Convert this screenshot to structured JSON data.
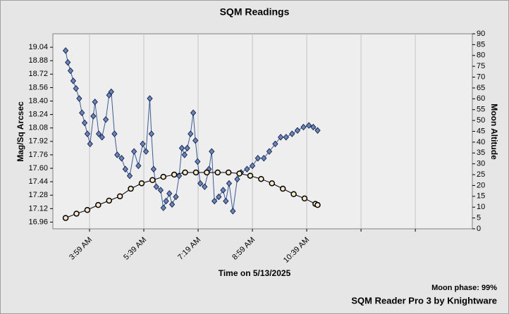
{
  "chart_data": {
    "type": "line",
    "title": "SQM Readings",
    "x_label": "Time on 5/13/2025",
    "y_label": "Mag/Sq Arcsec",
    "y2_label": "Moon Altitude",
    "annotations": [
      "Moon phase: 99%",
      "SQM Reader Pro 3 by Knightware"
    ],
    "grid": "x",
    "xlim": [
      171.5,
      944
    ],
    "xticks": [
      {
        "value": 239,
        "label": "3:59 AM"
      },
      {
        "value": 339,
        "label": "5:39 AM"
      },
      {
        "value": 439,
        "label": "7:19 AM"
      },
      {
        "value": 539,
        "label": "8:59 AM"
      },
      {
        "value": 639,
        "label": "10:39 AM"
      },
      {
        "value": 739,
        "label": null
      },
      {
        "value": 839,
        "label": null
      }
    ],
    "ylim": [
      16.88,
      19.2
    ],
    "yticks": [
      16.96,
      17.12,
      17.28,
      17.44,
      {
        "value": 17.6,
        "label": "17.60"
      },
      17.76,
      17.92,
      18.08,
      18.24,
      {
        "value": 18.4,
        "label": "18.40"
      },
      18.56,
      18.72,
      18.88,
      19.04
    ],
    "y2lim": [
      0,
      90
    ],
    "y2ticks": [
      0,
      5,
      10,
      15,
      20,
      25,
      30,
      35,
      40,
      45,
      50,
      55,
      60,
      65,
      70,
      75,
      80,
      85,
      90
    ],
    "series": [
      {
        "name": "SQM",
        "color": "#6a86c0",
        "marker": "diamond",
        "x": [
          195,
          199,
          204,
          209,
          214,
          220,
          225,
          230,
          235,
          240,
          246,
          249,
          256,
          262,
          269,
          275,
          279,
          285,
          290,
          298,
          305,
          313,
          321,
          329,
          337,
          343,
          350,
          353,
          357,
          362,
          370,
          375,
          380,
          386,
          391,
          398,
          404,
          409,
          414,
          419,
          425,
          430,
          434,
          438,
          443,
          451,
          459,
          464,
          469,
          477,
          485,
          490,
          496,
          503,
          511,
          518,
          529,
          539,
          549,
          560,
          570,
          581,
          591,
          601,
          612,
          622,
          633,
          643,
          651,
          659
        ],
        "values": [
          19.0,
          18.86,
          18.76,
          18.64,
          18.55,
          18.43,
          18.26,
          18.14,
          18.01,
          17.89,
          18.22,
          18.39,
          18.01,
          17.97,
          18.18,
          18.47,
          18.51,
          18.01,
          17.76,
          17.72,
          17.59,
          17.51,
          17.8,
          17.63,
          17.89,
          17.8,
          18.43,
          18.01,
          17.59,
          17.38,
          17.34,
          17.13,
          17.21,
          17.3,
          17.17,
          17.26,
          17.51,
          17.84,
          17.76,
          17.84,
          18.01,
          18.26,
          17.93,
          17.68,
          17.42,
          17.38,
          17.59,
          17.8,
          17.21,
          17.26,
          17.34,
          17.21,
          17.42,
          17.09,
          17.47,
          17.55,
          17.59,
          17.63,
          17.72,
          17.72,
          17.8,
          17.89,
          17.97,
          17.97,
          18.01,
          18.05,
          18.09,
          18.11,
          18.09,
          18.05
        ]
      },
      {
        "name": "Moon Altitude",
        "color": "#000000",
        "marker": "circle",
        "axis": "y2",
        "x": [
          195,
          215,
          235,
          255,
          275,
          295,
          315,
          335,
          355,
          375,
          395,
          415,
          435,
          455,
          475,
          495,
          515,
          535,
          555,
          575,
          595,
          615,
          635,
          655,
          659
        ],
        "values": [
          5,
          7,
          8.7,
          11,
          13,
          15,
          18.5,
          21,
          22.5,
          24,
          25,
          26,
          26,
          26,
          26,
          26,
          25.5,
          24.5,
          23,
          21,
          18.5,
          16,
          14,
          11.5,
          11
        ]
      }
    ]
  }
}
